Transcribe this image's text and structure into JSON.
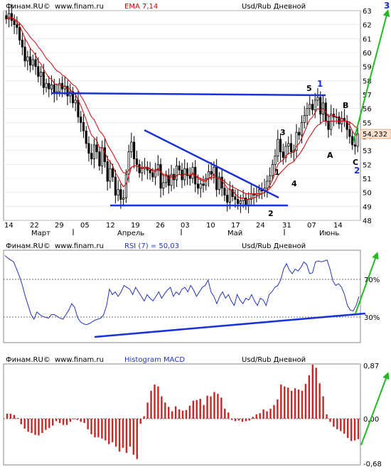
{
  "panels": {
    "price": {
      "brand": "Финам.RU©",
      "site": "www.finam.ru",
      "indicator": "EMA 7,14",
      "instrument": "Usd/Rub Дневной",
      "price_label": "54,232"
    },
    "rsi": {
      "brand": "Финам.RU©",
      "site": "www.finam.ru",
      "indicator": "RSI (7) = 50,03",
      "instrument": "Usd/Rub Дневной"
    },
    "macd": {
      "brand": "Финам.RU©",
      "site": "www.finam.ru",
      "indicator": "Histogram MACD",
      "instrument": "Usd/Rub Дневной"
    }
  },
  "x_axis": {
    "day_labels": [
      "14",
      "22",
      "29",
      "05",
      "12",
      "19",
      "26",
      "03",
      "10",
      "17",
      "24",
      "31",
      "07",
      "14"
    ],
    "month_labels": [
      "Март",
      "Апрель",
      "Май",
      "Июнь"
    ]
  },
  "annotations": {
    "wave_labels": [
      "1",
      "2",
      "3",
      "4",
      "5",
      "A",
      "B",
      "C"
    ],
    "blue_labels": [
      "1",
      "2",
      "3"
    ]
  },
  "colors": {
    "up_candle": "#ffffff",
    "down_candle": "#000000",
    "ema_line": "#d40000",
    "trend_line": "#1a33d6",
    "rsi_line": "#2233bb",
    "macd_bar": "#c62828",
    "arrow": "#22bb22",
    "price_badge": "#fbe2cf"
  },
  "chart_data": [
    {
      "type": "candlestick",
      "title": "Usd/Rub Дневной",
      "indicator": "EMA 7,14",
      "ylim": [
        48,
        63
      ],
      "y_ticks": [
        48,
        49,
        50,
        51,
        52,
        53,
        54,
        55,
        56,
        57,
        58,
        59,
        60,
        61,
        62,
        63
      ],
      "close": [
        62.4,
        62.8,
        62.3,
        62.0,
        61.8,
        60.9,
        60.4,
        59.4,
        59.7,
        59.1,
        59.5,
        59.0,
        58.3,
        58.6,
        57.5,
        57.8,
        57.4,
        57.7,
        57.1,
        57.2,
        57.8,
        57.4,
        57.6,
        56.9,
        57.2,
        56.4,
        56.6,
        55.4,
        55.0,
        54.4,
        53.5,
        52.8,
        52.4,
        53.4,
        52.9,
        51.9,
        53.2,
        52.2,
        50.8,
        51.7,
        51.1,
        49.8,
        50.2,
        49.5,
        49.6,
        51.3,
        52.9,
        53.6,
        52.4,
        52.0,
        51.4,
        51.7,
        51.8,
        51.6,
        51.4,
        51.1,
        51.6,
        52.0,
        50.3,
        50.7,
        51.2,
        50.5,
        51.3,
        50.9,
        51.9,
        51.6,
        50.9,
        51.7,
        51.2,
        51.0,
        51.8,
        50.6,
        50.3,
        50.6,
        50.5,
        51.0,
        51.5,
        51.3,
        51.8,
        50.2,
        51.1,
        50.3,
        49.8,
        49.3,
        50.2,
        49.7,
        49.5,
        49.2,
        49.4,
        49.6,
        49.1,
        49.5,
        49.9,
        49.8,
        49.9,
        50.2,
        50.1,
        50.3,
        50.8,
        51.2,
        52.0,
        52.6,
        53.8,
        52.9,
        52.5,
        53.3,
        53.5,
        52.9,
        53.0,
        54.3,
        54.1,
        55.0,
        55.5,
        56.0,
        56.3,
        55.9,
        56.6,
        56.8,
        55.6,
        56.4,
        55.1,
        54.5,
        55.6,
        55.4,
        55.4,
        54.9,
        55.3,
        55.1,
        54.5,
        54.0,
        53.4,
        53.3,
        54.2
      ],
      "series": [
        {
          "name": "EMA 7",
          "values": [
            62.4,
            62.5,
            62.5,
            62.3,
            62.2,
            61.9,
            61.5,
            61.0,
            60.7,
            60.3,
            60.1,
            59.8,
            59.4,
            59.2,
            58.8,
            58.5,
            58.2,
            58.1,
            57.8,
            57.7,
            57.7,
            57.6,
            57.6,
            57.4,
            57.4,
            57.1,
            57.0,
            56.6,
            56.2,
            55.7,
            55.2,
            54.6,
            54.1,
            53.9,
            53.7,
            53.2,
            53.2,
            52.9,
            52.4,
            52.2,
            51.9,
            51.4,
            51.1,
            50.7,
            50.4,
            50.6,
            51.2,
            51.8,
            51.9,
            51.9,
            51.8,
            51.7,
            51.8,
            51.7,
            51.7,
            51.5,
            51.5,
            51.7,
            51.4,
            51.2,
            51.2,
            51.0,
            51.1,
            51.0,
            51.2,
            51.3,
            51.2,
            51.3,
            51.3,
            51.2,
            51.4,
            51.2,
            51.0,
            50.9,
            50.8,
            50.8,
            51.0,
            51.1,
            51.3,
            51.0,
            51.0,
            50.8,
            50.6,
            50.3,
            50.2,
            50.1,
            49.9,
            49.7,
            49.6,
            49.6,
            49.5,
            49.5,
            49.6,
            49.6,
            49.7,
            49.8,
            49.9,
            50.0,
            50.2,
            50.5,
            50.9,
            51.4,
            52.0,
            52.2,
            52.3,
            52.6,
            52.8,
            52.8,
            52.9,
            53.3,
            53.5,
            53.9,
            54.3,
            54.8,
            55.2,
            55.4,
            55.7,
            56.0,
            55.9,
            56.0,
            55.8,
            55.4,
            55.5,
            55.5,
            55.4,
            55.3,
            55.3,
            55.2,
            55.0,
            54.8,
            54.4,
            54.1,
            54.1
          ]
        },
        {
          "name": "EMA 14",
          "values": [
            62.4,
            62.5,
            62.5,
            62.4,
            62.3,
            62.1,
            61.9,
            61.6,
            61.4,
            61.1,
            60.9,
            60.7,
            60.4,
            60.2,
            59.9,
            59.6,
            59.4,
            59.2,
            58.9,
            58.7,
            58.6,
            58.4,
            58.3,
            58.1,
            57.9,
            57.7,
            57.6,
            57.3,
            56.9,
            56.6,
            56.2,
            55.8,
            55.4,
            55.2,
            54.8,
            54.4,
            54.2,
            53.9,
            53.4,
            53.1,
            52.8,
            52.4,
            52.1,
            51.7,
            51.4,
            51.4,
            51.6,
            51.8,
            51.9,
            51.9,
            51.8,
            51.8,
            51.8,
            51.8,
            51.7,
            51.6,
            51.6,
            51.7,
            51.5,
            51.3,
            51.3,
            51.2,
            51.2,
            51.2,
            51.2,
            51.3,
            51.2,
            51.3,
            51.3,
            51.2,
            51.3,
            51.2,
            51.1,
            51.0,
            50.9,
            50.9,
            51.0,
            51.0,
            51.1,
            51.0,
            51.0,
            50.9,
            50.8,
            50.6,
            50.5,
            50.4,
            50.3,
            50.2,
            50.1,
            50.0,
            49.9,
            49.9,
            49.9,
            49.9,
            49.9,
            49.9,
            49.9,
            50.0,
            50.1,
            50.3,
            50.5,
            50.8,
            51.2,
            51.4,
            51.6,
            51.8,
            52.0,
            52.1,
            52.2,
            52.5,
            52.7,
            53.0,
            53.3,
            53.7,
            54.0,
            54.3,
            54.6,
            54.8,
            54.9,
            55.1,
            55.1,
            55.0,
            55.1,
            55.1,
            55.1,
            55.1,
            55.1,
            55.1,
            55.1,
            55.0,
            54.9,
            54.7,
            54.6
          ]
        }
      ],
      "annotation_lines": [
        {
          "name": "neckline",
          "from": [
            57.1,
            57.1
          ],
          "to": [
            57.1,
            57.1
          ]
        },
        {
          "name": "support",
          "from": [
            49.1,
            49.1
          ],
          "to": [
            49.1,
            49.1
          ]
        }
      ]
    },
    {
      "type": "line",
      "title": "RSI (7) = 50,03",
      "name": "RSI (7)",
      "ylim": [
        0,
        100
      ],
      "y_ticks": [
        30,
        70
      ],
      "y_tick_labels": [
        "30%",
        "70%"
      ],
      "values": [
        95,
        92,
        90,
        88,
        80,
        72,
        62,
        50,
        40,
        30,
        25,
        33,
        30,
        28,
        27,
        26,
        30,
        30,
        28,
        26,
        25,
        30,
        35,
        42,
        38,
        27,
        22,
        20,
        19,
        20,
        22,
        24,
        25,
        26,
        30,
        40,
        58,
        52,
        55,
        50,
        55,
        62,
        60,
        58,
        52,
        60,
        55,
        50,
        45,
        52,
        48,
        45,
        50,
        55,
        48,
        53,
        57,
        60,
        50,
        55,
        52,
        58,
        60,
        55,
        62,
        57,
        50,
        55,
        60,
        62,
        68,
        55,
        50,
        42,
        50,
        55,
        48,
        52,
        45,
        40,
        52,
        46,
        42,
        48,
        46,
        52,
        45,
        40,
        48,
        46,
        40,
        52,
        55,
        60,
        62,
        68,
        80,
        86,
        79,
        75,
        80,
        78,
        82,
        88,
        85,
        75,
        76,
        88,
        89,
        88,
        89,
        90,
        80,
        67,
        62,
        64,
        60,
        52,
        40,
        35,
        34,
        40,
        50
      ]
    },
    {
      "type": "bar",
      "title": "Histogram MACD",
      "name": "MACD histogram",
      "ylim": [
        -0.68,
        0.87
      ],
      "y_tick_labels": [
        "0,87",
        "0,00",
        "-0,68"
      ],
      "values": [
        0.08,
        0.08,
        0.06,
        0.01,
        -0.09,
        -0.16,
        -0.21,
        -0.23,
        -0.26,
        -0.27,
        -0.23,
        -0.18,
        -0.15,
        -0.11,
        -0.04,
        -0.07,
        -0.1,
        -0.1,
        -0.05,
        -0.01,
        -0.02,
        -0.05,
        -0.07,
        -0.17,
        -0.25,
        -0.3,
        -0.3,
        -0.32,
        -0.35,
        -0.41,
        -0.38,
        -0.45,
        -0.53,
        -0.47,
        -0.55,
        -0.45,
        -0.58,
        -0.65,
        -0.08,
        0.04,
        0.26,
        0.45,
        0.55,
        0.52,
        0.36,
        0.26,
        0.19,
        0.12,
        0.2,
        0.15,
        0.13,
        0.14,
        0.21,
        0.29,
        0.3,
        0.32,
        0.22,
        0.37,
        0.36,
        0.43,
        0.4,
        0.34,
        0.16,
        0.1,
        -0.02,
        -0.04,
        -0.03,
        -0.05,
        -0.04,
        -0.03,
        0.03,
        0.07,
        0.09,
        0.15,
        0.12,
        0.16,
        0.22,
        0.31,
        0.55,
        0.52,
        0.5,
        0.45,
        0.49,
        0.47,
        0.45,
        0.56,
        0.7,
        0.87,
        0.82,
        0.57,
        0.36,
        0.07,
        -0.05,
        -0.13,
        -0.17,
        -0.2,
        -0.24,
        -0.31,
        -0.36,
        -0.35,
        -0.33
      ]
    }
  ]
}
